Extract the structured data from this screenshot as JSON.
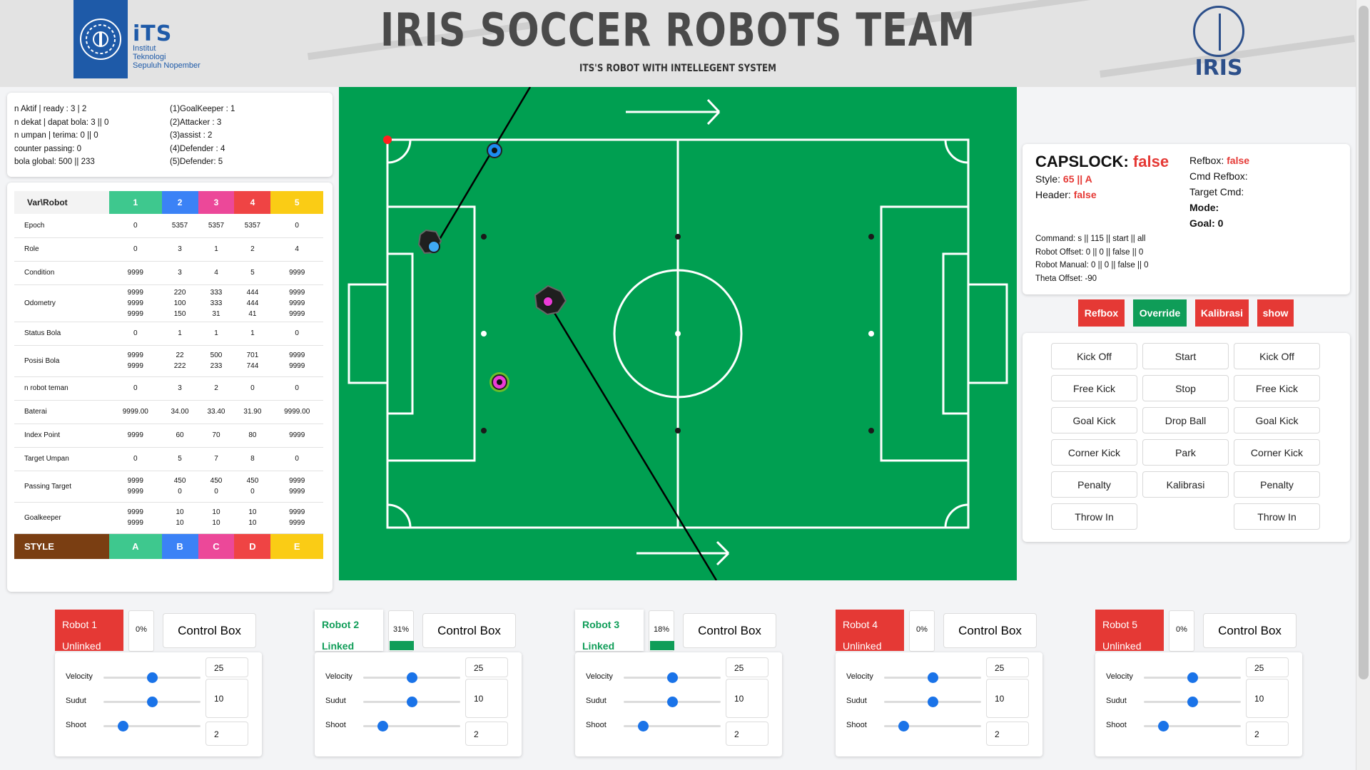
{
  "header": {
    "title": "IRIS SOCCER ROBOTS TEAM",
    "subtitle": "ITS'S ROBOT WITH INTELLEGENT SYSTEM",
    "its_logo_text": "iTS",
    "its_logo_sub1": "Institut",
    "its_logo_sub2": "Teknologi",
    "its_logo_sub3": "Sepuluh Nopember",
    "iris_logo_text": "IRIS"
  },
  "info": {
    "left": [
      "n Aktif | ready : 3 | 2",
      "n dekat | dapat bola: 3 || 0",
      "n umpan | terima: 0 || 0",
      "counter passing: 0",
      "bola global: 500 || 233"
    ],
    "right": [
      "(1)GoalKeeper : 1",
      "(2)Attacker : 3",
      "(3)assist : 2",
      "(4)Defender : 4",
      "(5)Defender: 5"
    ]
  },
  "table": {
    "header_label": "Var\\Robot",
    "robots": [
      "1",
      "2",
      "3",
      "4",
      "5"
    ],
    "robot_colors": [
      "#3ec88e",
      "#3b82f6",
      "#ec4899",
      "#ef4444",
      "#facc15"
    ],
    "rows": [
      {
        "label": "Epoch",
        "values": [
          [
            "0"
          ],
          [
            "5357"
          ],
          [
            "5357"
          ],
          [
            "5357"
          ],
          [
            "0"
          ]
        ]
      },
      {
        "label": "Role",
        "values": [
          [
            "0"
          ],
          [
            "3"
          ],
          [
            "1"
          ],
          [
            "2"
          ],
          [
            "4"
          ]
        ]
      },
      {
        "label": "Condition",
        "values": [
          [
            "9999"
          ],
          [
            "3"
          ],
          [
            "4"
          ],
          [
            "5"
          ],
          [
            "9999"
          ]
        ]
      },
      {
        "label": "Odometry",
        "values": [
          [
            "9999",
            "9999",
            "9999"
          ],
          [
            "220",
            "100",
            "150"
          ],
          [
            "333",
            "333",
            "31"
          ],
          [
            "444",
            "444",
            "41"
          ],
          [
            "9999",
            "9999",
            "9999"
          ]
        ]
      },
      {
        "label": "Status Bola",
        "values": [
          [
            "0"
          ],
          [
            "1"
          ],
          [
            "1"
          ],
          [
            "1"
          ],
          [
            "0"
          ]
        ]
      },
      {
        "label": "Posisi Bola",
        "values": [
          [
            "9999",
            "9999"
          ],
          [
            "22",
            "222"
          ],
          [
            "500",
            "233"
          ],
          [
            "701",
            "744"
          ],
          [
            "9999",
            "9999"
          ]
        ]
      },
      {
        "label": "n robot teman",
        "values": [
          [
            "0"
          ],
          [
            "3"
          ],
          [
            "2"
          ],
          [
            "0"
          ],
          [
            "0"
          ]
        ]
      },
      {
        "label": "Baterai",
        "values": [
          [
            "9999.00"
          ],
          [
            "34.00"
          ],
          [
            "33.40"
          ],
          [
            "31.90"
          ],
          [
            "9999.00"
          ]
        ]
      },
      {
        "label": "Index Point",
        "values": [
          [
            "9999"
          ],
          [
            "60"
          ],
          [
            "70"
          ],
          [
            "80"
          ],
          [
            "9999"
          ]
        ]
      },
      {
        "label": "Target Umpan",
        "values": [
          [
            "0"
          ],
          [
            "5"
          ],
          [
            "7"
          ],
          [
            "8"
          ],
          [
            "0"
          ]
        ]
      },
      {
        "label": "Passing Target",
        "values": [
          [
            "9999",
            "9999"
          ],
          [
            "450",
            "0"
          ],
          [
            "450",
            "0"
          ],
          [
            "450",
            "0"
          ],
          [
            "9999",
            "9999"
          ]
        ]
      },
      {
        "label": "Goalkeeper",
        "values": [
          [
            "9999",
            "9999"
          ],
          [
            "10",
            "10"
          ],
          [
            "10",
            "10"
          ],
          [
            "10",
            "10"
          ],
          [
            "9999",
            "9999"
          ]
        ]
      }
    ],
    "style_label": "STYLE",
    "style_color": "#7a3e12",
    "styles": [
      "A",
      "B",
      "C",
      "D",
      "E"
    ]
  },
  "capslock": {
    "label": "CAPSLOCK:",
    "value": "false",
    "style_label": "Style:",
    "style_value": "65 || A",
    "header_label": "Header:",
    "header_value": "false",
    "refbox_label": "Refbox:",
    "refbox_value": "false",
    "cmd_refbox": "Cmd Refbox:",
    "target_cmd": "Target Cmd:",
    "mode": "Mode:",
    "goal": "Goal: 0",
    "command": "Command: s || 115 || start || all",
    "robot_offset": "Robot Offset: 0 || 0 || false || 0",
    "robot_manual": "Robot Manual: 0 || 0 || false || 0",
    "theta_offset": "Theta Offset: -90"
  },
  "top_buttons": [
    {
      "label": "Refbox",
      "color": "#e53935"
    },
    {
      "label": "Override",
      "color": "#0f9d58"
    },
    {
      "label": "Kalibrasi",
      "color": "#e53935"
    },
    {
      "label": "show",
      "color": "#e53935"
    }
  ],
  "command_buttons": {
    "left": [
      "Kick Off",
      "Free Kick",
      "Goal Kick",
      "Corner Kick",
      "Penalty",
      "Throw In"
    ],
    "middle": [
      "Start",
      "Stop",
      "Drop Ball",
      "Park",
      "Kalibrasi"
    ],
    "right": [
      "Kick Off",
      "Free Kick",
      "Goal Kick",
      "Corner Kick",
      "Penalty",
      "Throw In"
    ]
  },
  "robots": [
    {
      "name": "Robot 1",
      "status": "Unlinked",
      "linked": false,
      "percent": "0%",
      "fill": 0,
      "control_label": "Control Box",
      "velocity": 25,
      "sudut": 10,
      "shoot": 2
    },
    {
      "name": "Robot 2",
      "status": "Linked",
      "linked": true,
      "percent": "31%",
      "fill": 0.31,
      "control_label": "Control Box",
      "velocity": 25,
      "sudut": 10,
      "shoot": 2
    },
    {
      "name": "Robot 3",
      "status": "Linked",
      "linked": true,
      "percent": "18%",
      "fill": 0.18,
      "control_label": "Control Box",
      "velocity": 25,
      "sudut": 10,
      "shoot": 2
    },
    {
      "name": "Robot 4",
      "status": "Unlinked",
      "linked": false,
      "percent": "0%",
      "fill": 0,
      "control_label": "Control Box",
      "velocity": 25,
      "sudut": 10,
      "shoot": 2
    },
    {
      "name": "Robot 5",
      "status": "Unlinked",
      "linked": false,
      "percent": "0%",
      "fill": 0,
      "control_label": "Control Box",
      "velocity": 25,
      "sudut": 10,
      "shoot": 2
    }
  ],
  "slider_labels": {
    "velocity": "Velocity",
    "sudut": "Sudut",
    "shoot": "Shoot"
  },
  "field": {
    "color": "#009f51",
    "robot_icons": [
      "robot-blue",
      "robot-magenta"
    ],
    "ball_icons": [
      "ball-blue",
      "ball-magenta"
    ]
  }
}
